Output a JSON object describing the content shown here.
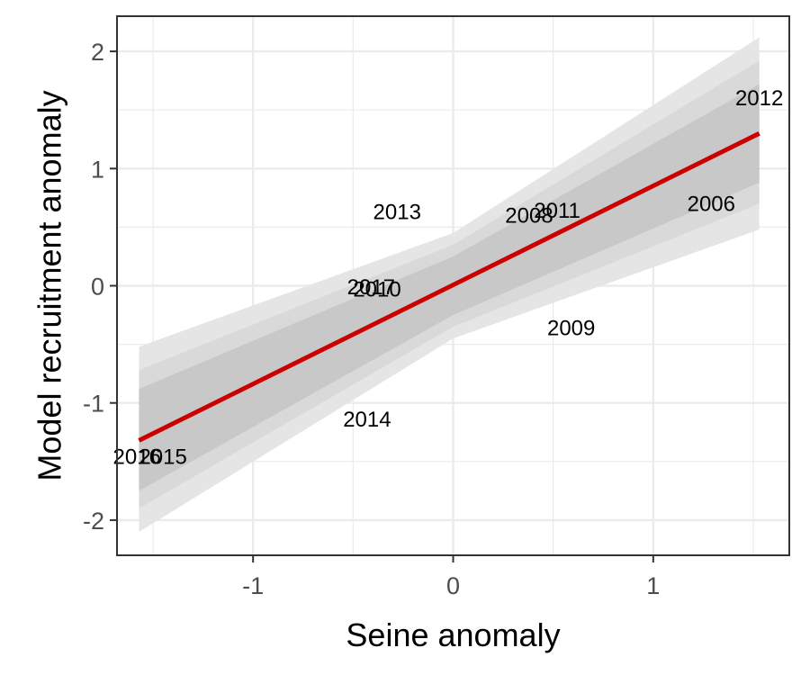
{
  "chart_data": {
    "type": "scatter",
    "title": "",
    "xlabel": "Seine anomaly",
    "ylabel": "Model recruitment anomaly",
    "xlim": [
      -1.68,
      1.68
    ],
    "ylim": [
      -2.3,
      2.3
    ],
    "x_ticks": [
      -1,
      0,
      1
    ],
    "y_ticks": [
      -2,
      -1,
      0,
      1,
      2
    ],
    "x_tick_labels": [
      "-1",
      "0",
      "1"
    ],
    "y_tick_labels": [
      "-2",
      "-1",
      "0",
      "1",
      "2"
    ],
    "grid": true,
    "points": [
      {
        "label": "2012",
        "x": 1.53,
        "y": 1.6
      },
      {
        "label": "2006",
        "x": 1.29,
        "y": 0.7
      },
      {
        "label": "2011",
        "x": 0.52,
        "y": 0.64
      },
      {
        "label": "2008",
        "x": 0.38,
        "y": 0.6
      },
      {
        "label": "2013",
        "x": -0.28,
        "y": 0.63
      },
      {
        "label": "2017",
        "x": -0.41,
        "y": -0.01
      },
      {
        "label": "2010",
        "x": -0.38,
        "y": -0.03
      },
      {
        "label": "2009",
        "x": 0.59,
        "y": -0.36
      },
      {
        "label": "2014",
        "x": -0.43,
        "y": -1.14
      },
      {
        "label": "2016",
        "x": -1.58,
        "y": -1.46
      },
      {
        "label": "2015",
        "x": -1.45,
        "y": -1.46
      }
    ],
    "fit_line": {
      "x": [
        -1.57,
        1.53
      ],
      "y": [
        -1.32,
        1.3
      ],
      "color": "#cc0000"
    },
    "bands": [
      {
        "level": "outer",
        "x": [
          -1.57,
          0.0,
          1.53
        ],
        "lower": [
          -2.1,
          -0.45,
          0.48
        ],
        "upper": [
          -0.52,
          0.45,
          2.12
        ],
        "color": "#e5e5e5"
      },
      {
        "level": "middle",
        "x": [
          -1.57,
          0.0,
          1.53
        ],
        "lower": [
          -1.9,
          -0.35,
          0.7
        ],
        "upper": [
          -0.72,
          0.35,
          1.92
        ],
        "color": "#d9d9d9"
      },
      {
        "level": "inner",
        "x": [
          -1.57,
          0.0,
          1.53
        ],
        "lower": [
          -1.75,
          -0.25,
          0.88
        ],
        "upper": [
          -0.88,
          0.25,
          1.72
        ],
        "color": "#c8c8c8"
      }
    ],
    "colors": {
      "grid": "#ebebeb",
      "panel_border": "#333333",
      "tick_text": "#4d4d4d",
      "line": "#cc0000"
    }
  }
}
